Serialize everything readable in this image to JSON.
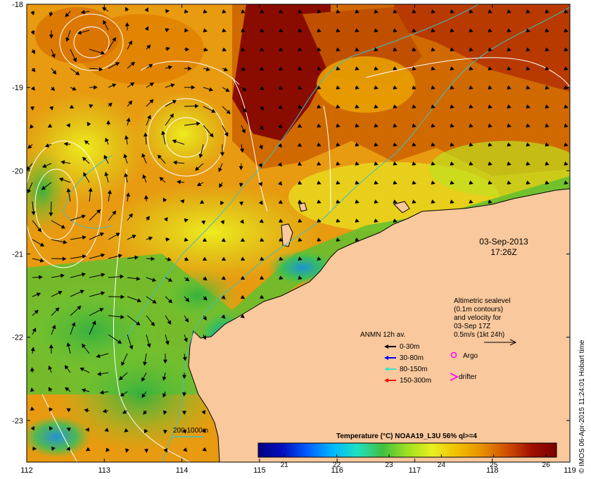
{
  "date_stamp": {
    "date": "03-Sep-2013",
    "time": "17:26Z"
  },
  "altimetry_note": {
    "lines": [
      "Altimetric sealevel",
      "(0.1m contours)",
      "and velocity for",
      "03-Sep 17Z",
      "0.5m/s (1kt 24h)"
    ]
  },
  "mooring_legend": {
    "title": "ANMN 12h av.",
    "items": [
      {
        "label": "0-30m",
        "color": "#000000"
      },
      {
        "label": "30-80m",
        "color": "#0000ff"
      },
      {
        "label": "80-150m",
        "color": "#40e0d0"
      },
      {
        "label": "150-300m",
        "color": "#ff0000"
      }
    ]
  },
  "symbols": {
    "argo": {
      "label": "Argo",
      "color": "#ff00ff"
    },
    "drifter": {
      "label": "drifter",
      "color": "#ff00ff"
    }
  },
  "isobath": {
    "label": "200  1000m",
    "color": "#40c0c0"
  },
  "colorbar": {
    "title": "Temperature (°C) NOAA19_L3U 56% ql>=4",
    "range": [
      20.5,
      26.2
    ],
    "ticks": [
      "21",
      "22",
      "23",
      "24",
      "25",
      "26"
    ],
    "tick_values": [
      21,
      22,
      23,
      24,
      25,
      26
    ],
    "stops": [
      "#00007f",
      "#0010c0",
      "#0060ff",
      "#00b8ff",
      "#20e0c0",
      "#40c040",
      "#a0e020",
      "#e8f020",
      "#f0c000",
      "#e89000",
      "#d05000",
      "#a01000",
      "#7a0000"
    ]
  },
  "credit": "© IMOS 06-Apr-2015 11:24:01 Hobart time",
  "axes": {
    "lon_ticks": [
      "112",
      "113",
      "114",
      "115",
      "116",
      "117",
      "118",
      "119"
    ],
    "lon_values": [
      112,
      113,
      114,
      115,
      116,
      117,
      118,
      119
    ],
    "lat_ticks": [
      "-18",
      "-19",
      "-20",
      "-21",
      "-22",
      "-23"
    ],
    "lat_values": [
      -18,
      -19,
      -20,
      -21,
      -22,
      -23
    ],
    "lon_range": [
      112,
      119
    ],
    "lat_range": [
      -18,
      -23.5
    ]
  },
  "colors": {
    "land": "#f9c89c",
    "coast": "#000000",
    "contour": "#ffffff",
    "isobath": "#40c0c0",
    "arrow": "#000000"
  }
}
